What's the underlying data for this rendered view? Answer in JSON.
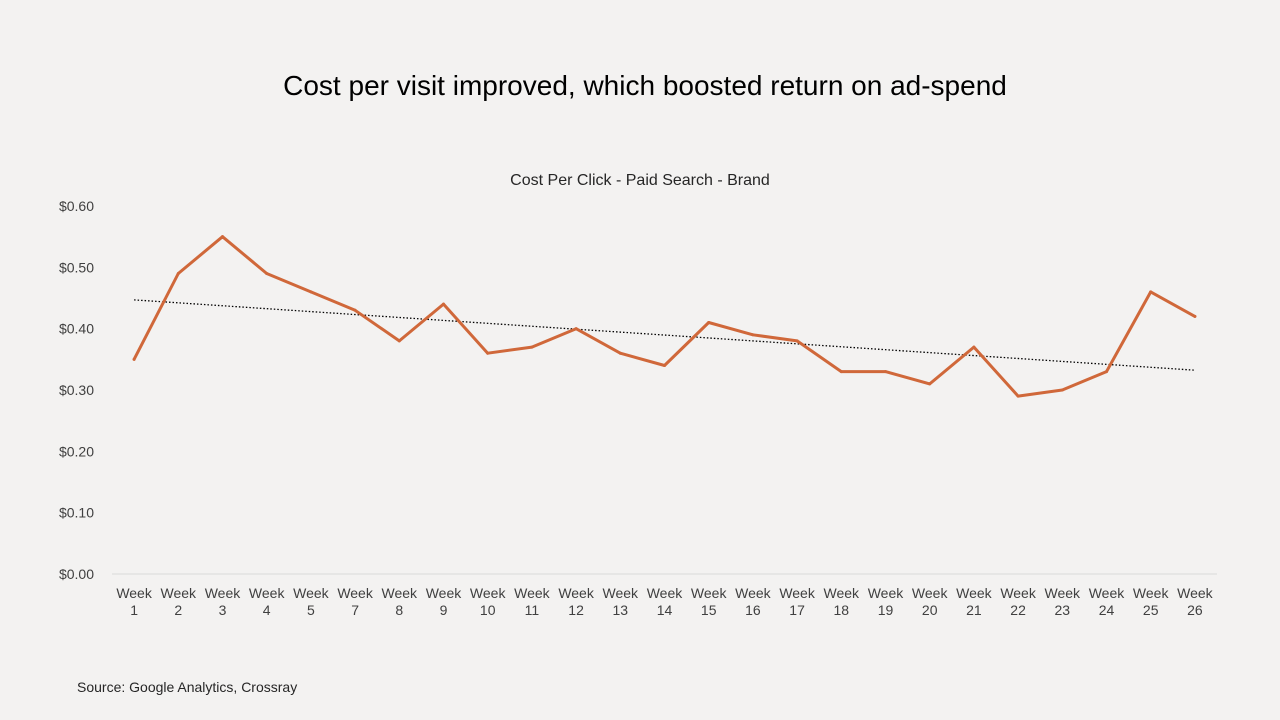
{
  "slide": {
    "title": "Cost per visit improved, which boosted return on ad-spend",
    "source": "Source: Google Analytics, Crossray"
  },
  "colors": {
    "background": "#f3f2f1",
    "series": "#d0683a",
    "trendline": "#000000",
    "axis": "#d9d9d9"
  },
  "chart_data": {
    "type": "line",
    "title": "Cost Per Click - Paid Search - Brand",
    "xlabel": "",
    "ylabel": "",
    "categories": [
      [
        "Week",
        "1"
      ],
      [
        "Week",
        "2"
      ],
      [
        "Week",
        "3"
      ],
      [
        "Week",
        "4"
      ],
      [
        "Week",
        "5"
      ],
      [
        "Week",
        "7"
      ],
      [
        "Week",
        "8"
      ],
      [
        "Week",
        "9"
      ],
      [
        "Week",
        "10"
      ],
      [
        "Week",
        "11"
      ],
      [
        "Week",
        "12"
      ],
      [
        "Week",
        "13"
      ],
      [
        "Week",
        "14"
      ],
      [
        "Week",
        "15"
      ],
      [
        "Week",
        "16"
      ],
      [
        "Week",
        "17"
      ],
      [
        "Week",
        "18"
      ],
      [
        "Week",
        "19"
      ],
      [
        "Week",
        "20"
      ],
      [
        "Week",
        "21"
      ],
      [
        "Week",
        "22"
      ],
      [
        "Week",
        "23"
      ],
      [
        "Week",
        "24"
      ],
      [
        "Week",
        "25"
      ],
      [
        "Week",
        "26"
      ]
    ],
    "series": [
      {
        "values": [
          0.35,
          0.49,
          0.55,
          0.49,
          0.46,
          0.43,
          0.38,
          0.44,
          0.36,
          0.37,
          0.4,
          0.36,
          0.34,
          0.41,
          0.39,
          0.38,
          0.33,
          0.33,
          0.31,
          0.37,
          0.29,
          0.3,
          0.33,
          0.46,
          0.42
        ]
      }
    ],
    "trendline": {
      "type": "linear",
      "style": "dotted"
    },
    "ylim": [
      0,
      0.6
    ],
    "yticks": [
      "$0.00",
      "$0.10",
      "$0.20",
      "$0.30",
      "$0.40",
      "$0.50",
      "$0.60"
    ],
    "grid": false,
    "legend": "none"
  }
}
